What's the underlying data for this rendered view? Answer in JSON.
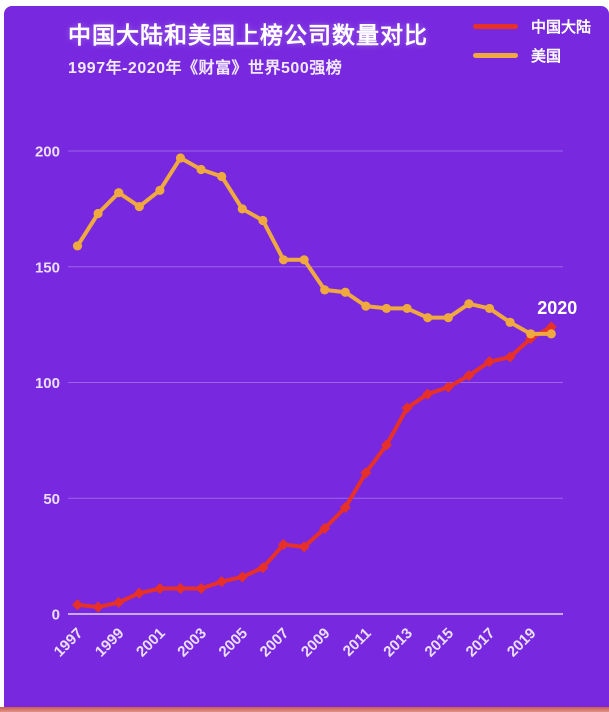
{
  "header": {
    "title": "中国大陆和美国上榜公司数量对比",
    "subtitle": "1997年-2020年《财富》世界500强榜"
  },
  "legend": [
    {
      "label": "中国大陆",
      "color": "#e73128"
    },
    {
      "label": "美国",
      "color": "#efa93f"
    }
  ],
  "colors": {
    "background": "#7829df",
    "china_red": "#e73128",
    "usa_yellow": "#efa93f",
    "bottom_strip": "#cb5b4f",
    "grid": "rgba(255,255,255,0.28)",
    "axis": "rgba(255,255,255,0.8)",
    "tick_text": "#eadefb"
  },
  "chart_data": {
    "type": "line",
    "title": "中国大陆和美国上榜公司数量对比",
    "subtitle": "1997年-2020年《财富》世界500强榜",
    "x": [
      1997,
      1998,
      1999,
      2000,
      2001,
      2002,
      2003,
      2004,
      2005,
      2006,
      2007,
      2008,
      2009,
      2010,
      2011,
      2012,
      2013,
      2014,
      2015,
      2016,
      2017,
      2018,
      2019,
      2020
    ],
    "x_tick_labels": [
      "1997",
      "1999",
      "2001",
      "2003",
      "2005",
      "2007",
      "2009",
      "2011",
      "2013",
      "2015",
      "2017",
      "2019"
    ],
    "yticks": [
      0,
      50,
      100,
      150,
      200
    ],
    "ylim": [
      0,
      200
    ],
    "grid": true,
    "legend_position": "top-right",
    "series": [
      {
        "name": "中国大陆",
        "color": "#e73128",
        "marker": "diamond",
        "values": [
          4,
          3,
          5,
          9,
          11,
          11,
          11,
          14,
          16,
          20,
          30,
          29,
          37,
          46,
          61,
          73,
          89,
          95,
          98,
          103,
          109,
          111,
          119,
          124
        ]
      },
      {
        "name": "美国",
        "color": "#efa93f",
        "marker": "circle",
        "values": [
          159,
          173,
          182,
          176,
          183,
          197,
          192,
          189,
          175,
          170,
          153,
          153,
          140,
          139,
          133,
          132,
          132,
          128,
          128,
          134,
          132,
          126,
          121,
          121
        ]
      }
    ],
    "annotation": {
      "text": "2020",
      "year": 2020,
      "series": "中国大陆"
    }
  }
}
